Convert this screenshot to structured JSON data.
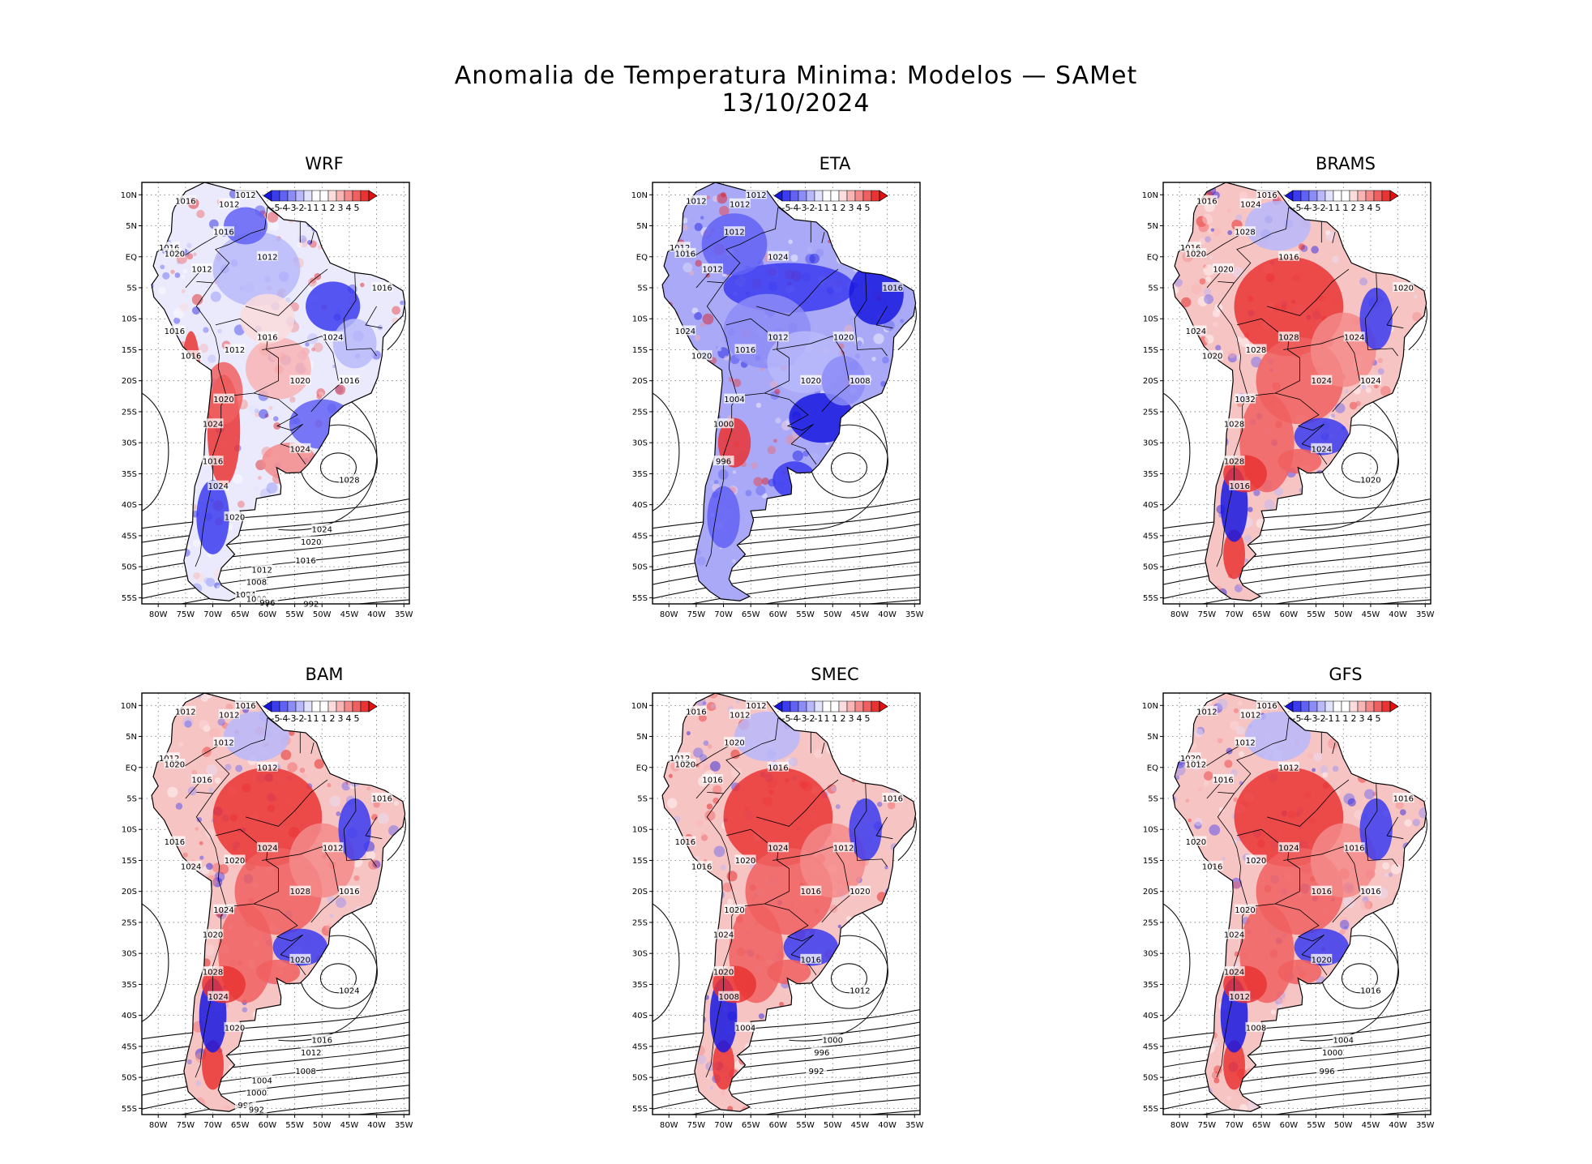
{
  "figure": {
    "title_line1": "Anomalia de Temperatura Minima: Modelos — SAMet",
    "title_line2": "13/10/2024"
  },
  "axes": {
    "lat_labels": [
      "10N",
      "5N",
      "EQ",
      "5S",
      "10S",
      "15S",
      "20S",
      "25S",
      "30S",
      "35S",
      "40S",
      "45S",
      "50S",
      "55S"
    ],
    "lon_labels": [
      "80W",
      "75W",
      "70W",
      "65W",
      "60W",
      "55W",
      "50W",
      "45W",
      "40W",
      "35W"
    ],
    "lat_range": [
      12,
      -56
    ],
    "lon_range": [
      -83,
      -34
    ]
  },
  "colorbar": {
    "labels": [
      "-5",
      "-4",
      "-3",
      "-2",
      "-1",
      "1",
      "1",
      "2",
      "3",
      "4",
      "5"
    ],
    "colors": [
      "#1717e0",
      "#3b3bf0",
      "#6161f5",
      "#8c8cf7",
      "#b8b8fa",
      "#e2e2fc",
      "#ffffff",
      "#ffffff",
      "#fcdcdc",
      "#f9b4b4",
      "#f58a8a",
      "#f06060",
      "#ea3434",
      "#e01212"
    ]
  },
  "panels": [
    {
      "name": "WRF",
      "anomaly": "mixed",
      "isobars": [
        "1012",
        "1016",
        "1012",
        "1016",
        "1020",
        "1016",
        "1012",
        "1012",
        "1016",
        "1024",
        "1016",
        "1016",
        "1012",
        "1016",
        "1020",
        "1016",
        "1020",
        "1024",
        "1016",
        "1024",
        "1028",
        "1024",
        "1020",
        "1024",
        "1020",
        "1016",
        "1012",
        "1008",
        "1004",
        "1000",
        "996",
        "992"
      ]
    },
    {
      "name": "ETA",
      "anomaly": "cold",
      "isobars": [
        "1012",
        "1012",
        "1012",
        "1012",
        "1016",
        "1012",
        "1024",
        "1012",
        "1016",
        "1020",
        "1024",
        "1020",
        "1016",
        "1012",
        "1020",
        "1008",
        "1004",
        "1000",
        "996"
      ]
    },
    {
      "name": "BRAMS",
      "anomaly": "warm",
      "isobars": [
        "1016",
        "1016",
        "1024",
        "1016",
        "1020",
        "1028",
        "1016",
        "1020",
        "1020",
        "1024",
        "1024",
        "1020",
        "1028",
        "1028",
        "1024",
        "1024",
        "1032",
        "1028",
        "1028",
        "1024",
        "1020",
        "1016"
      ]
    },
    {
      "name": "BAM",
      "anomaly": "warm",
      "isobars": [
        "1016",
        "1012",
        "1012",
        "1012",
        "1020",
        "1012",
        "1012",
        "1016",
        "1016",
        "1012",
        "1016",
        "1024",
        "1020",
        "1024",
        "1028",
        "1016",
        "1024",
        "1020",
        "1028",
        "1020",
        "1024",
        "1024",
        "1020",
        "1016",
        "1012",
        "1008",
        "1004",
        "1000",
        "996",
        "992"
      ]
    },
    {
      "name": "SMEC",
      "anomaly": "warm",
      "isobars": [
        "1012",
        "1016",
        "1012",
        "1012",
        "1020",
        "1020",
        "1016",
        "1016",
        "1016",
        "1012",
        "1016",
        "1016",
        "1020",
        "1024",
        "1016",
        "1020",
        "1020",
        "1024",
        "1020",
        "1016",
        "1012",
        "1008",
        "1004",
        "1000",
        "996",
        "992"
      ]
    },
    {
      "name": "GFS",
      "anomaly": "warm",
      "isobars": [
        "1016",
        "1012",
        "1012",
        "1020",
        "1012",
        "1012",
        "1012",
        "1016",
        "1016",
        "1016",
        "1020",
        "1016",
        "1020",
        "1024",
        "1016",
        "1016",
        "1020",
        "1024",
        "1024",
        "1020",
        "1016",
        "1012",
        "1008",
        "1004",
        "1000",
        "996"
      ]
    }
  ]
}
